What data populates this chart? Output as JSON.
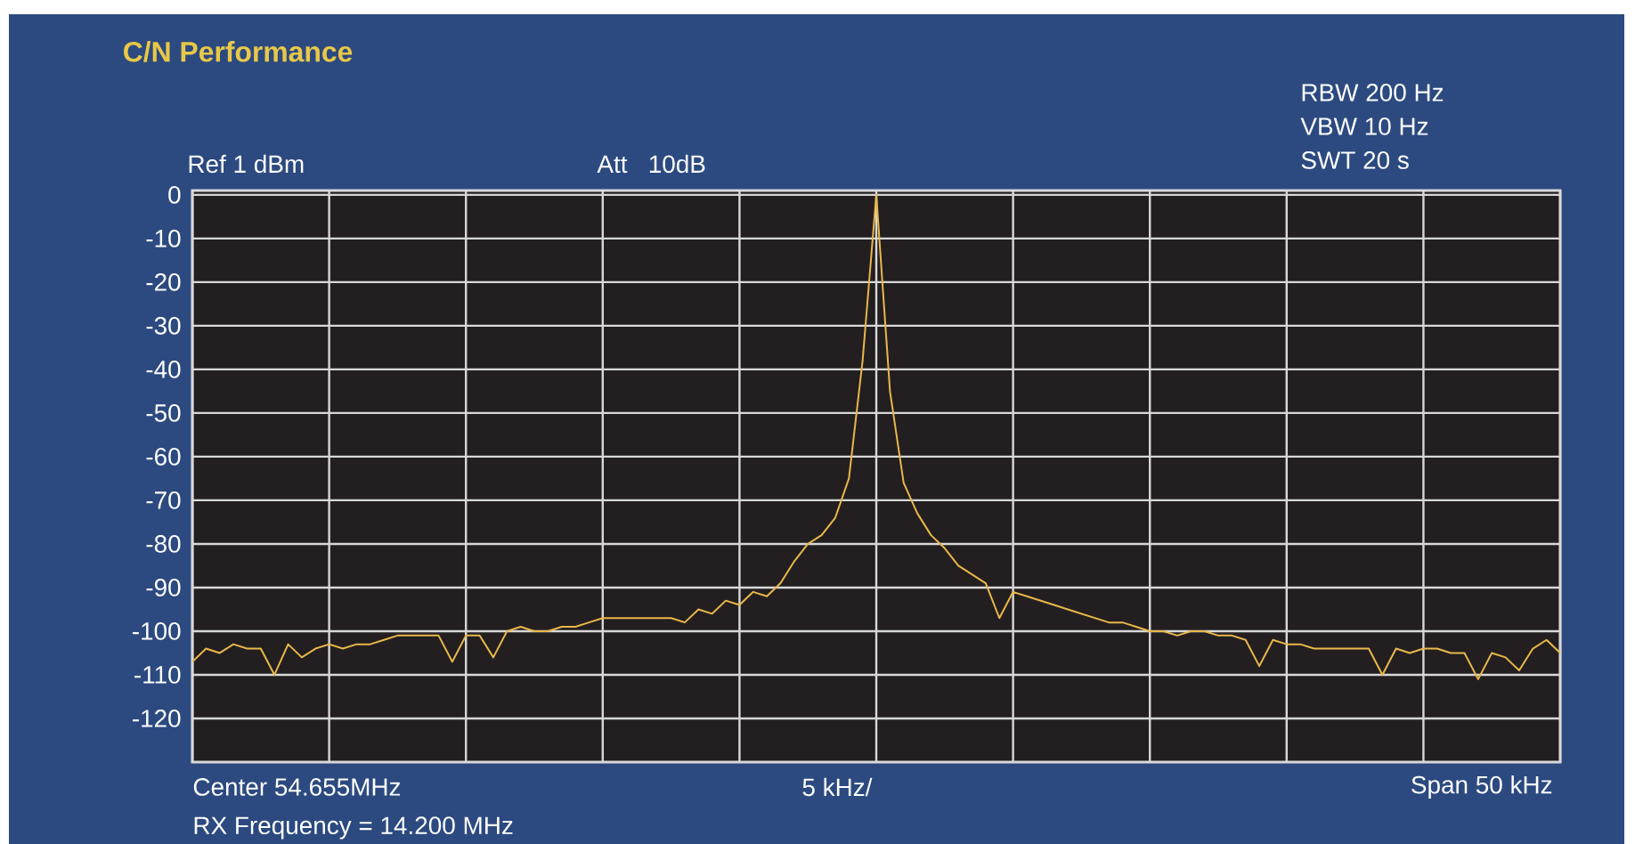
{
  "chart_data": {
    "type": "line",
    "title": "C/N Performance",
    "annotations": [
      "Ref 1 dBm",
      "Att   10dB",
      "RBW 200 Hz",
      "VBW 10 Hz",
      "SWT 20 s",
      "Center 54.655MHz",
      "5 kHz/",
      "Span 50 kHz",
      "RX Frequency = 14.200 MHz"
    ],
    "categories": [
      null,
      null,
      null,
      null,
      null,
      null,
      null,
      null,
      null,
      null,
      null,
      null,
      null,
      null,
      null,
      null,
      null,
      null,
      null,
      null,
      null,
      null,
      null,
      null,
      null,
      null,
      null,
      null,
      null,
      null,
      null,
      null,
      null,
      null,
      null,
      null,
      null,
      null,
      null,
      null,
      null,
      null,
      null,
      null,
      null,
      null,
      null,
      null,
      null,
      null,
      null,
      null,
      null,
      null,
      null,
      null,
      null,
      null,
      null,
      null,
      null,
      null,
      null,
      null,
      null,
      null,
      null,
      null,
      null,
      null,
      null,
      null,
      null,
      null,
      null,
      null,
      null,
      null,
      null,
      null,
      null,
      null,
      null,
      null,
      null,
      null,
      null,
      null,
      null,
      null,
      null,
      null,
      null,
      null,
      null,
      null,
      null,
      null,
      null,
      null,
      null
    ],
    "values": [
      -107,
      -104,
      -105,
      -103,
      -104,
      -104,
      -110,
      -103,
      -106,
      -104,
      -103,
      -104,
      -103,
      -103,
      -102,
      -101,
      -101,
      -101,
      -101,
      -107,
      -101,
      -101,
      -106,
      -100,
      -99,
      -100,
      -100,
      -99,
      -99,
      -98,
      -97,
      -97,
      -97,
      -97,
      -97,
      -97,
      -98,
      -95,
      -96,
      -93,
      -94,
      -91,
      -92,
      -89,
      -84,
      -80,
      -78,
      -74,
      -65,
      -38,
      0,
      -45,
      -66,
      -73,
      -78,
      -81,
      -85,
      -87,
      -89,
      -97,
      -91,
      -92,
      -93,
      -94,
      -95,
      -96,
      -97,
      -98,
      -98,
      -99,
      -100,
      -100,
      -101,
      -100,
      -100,
      -101,
      -101,
      -102,
      -108,
      -102,
      -103,
      -103,
      -104,
      -104,
      -104,
      -104,
      -104,
      -110,
      -104,
      -105,
      -104,
      -104,
      -105,
      -105,
      -111,
      -105,
      -106,
      -109,
      -104,
      -102,
      -105
    ],
    "color": "#e8b84a",
    "ylim": [
      -130,
      1
    ],
    "yticks": [
      0,
      -10,
      -20,
      -30,
      -40,
      -50,
      -60,
      -70,
      -80,
      -90,
      -100,
      -110,
      -120
    ],
    "grid": true,
    "tick_labels": "y"
  }
}
